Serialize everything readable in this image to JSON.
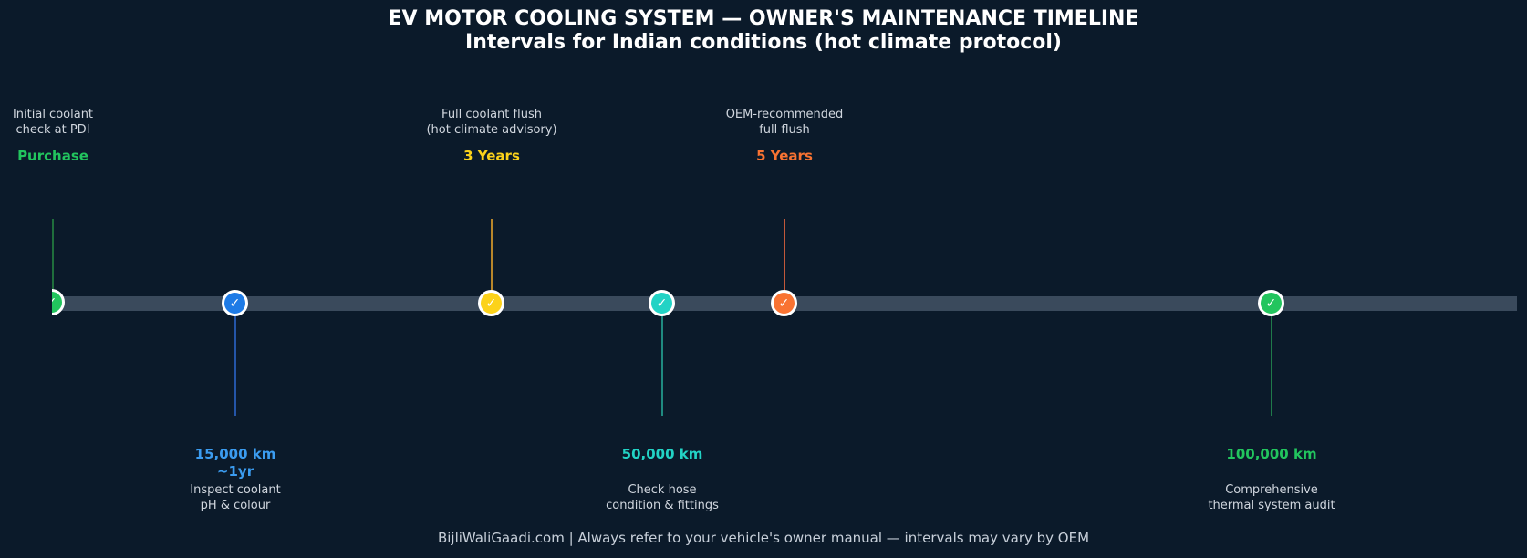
{
  "header": {
    "title": "EV MOTOR COOLING SYSTEM — OWNER'S MAINTENANCE TIMELINE",
    "subtitle": "Intervals for Indian conditions (hot climate protocol)"
  },
  "milestones": [
    {
      "key": "Purchase",
      "desc_line1": "Initial coolant",
      "desc_line2": "check at PDI",
      "color": "#22c55e",
      "icon": "check-icon"
    },
    {
      "key": "15,000 km",
      "key_line2": "~1yr",
      "desc_line1": "Inspect coolant",
      "desc_line2": "pH & colour",
      "color": "#3b9cf0",
      "icon": "check-icon"
    },
    {
      "key": "3 Years",
      "desc_line1": "Full coolant flush",
      "desc_line2": "(hot climate advisory)",
      "color": "#fcd21a",
      "icon": "check-icon"
    },
    {
      "key": "50,000 km",
      "desc_line1": "Check hose",
      "desc_line2": "condition & fittings",
      "color": "#22d3c5",
      "icon": "check-icon"
    },
    {
      "key": "5 Years",
      "desc_line1": "OEM-recommended",
      "desc_line2": "full flush",
      "color": "#f97332",
      "icon": "check-icon"
    },
    {
      "key": "100,000 km",
      "desc_line1": "Comprehensive",
      "desc_line2": "thermal system audit",
      "color": "#22c55e",
      "icon": "check-icon"
    }
  ],
  "check_glyph": "✓",
  "footer": "BijliWaliGaadi.com | Always refer to your vehicle's owner manual — intervals may vary by OEM"
}
